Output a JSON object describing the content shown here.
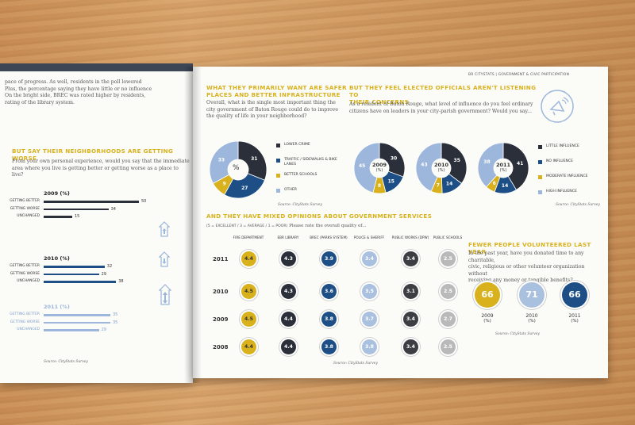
{
  "header": {
    "running_head": "BR CITYSTATS | GOVERNMENT & CIVIC PARTICIPATION"
  },
  "left": {
    "intro": [
      " pace of progress. As well, residents in the poll lowered",
      "Plus, the percentage saying they have little or no influence",
      "On the bright side, BREC was rated higher by residents,",
      "rating of the library system."
    ],
    "heading": "BUT SAY THEIR NEIGHBORHOODS ARE GETTING WORSE",
    "question": [
      "From your own personal experience, would you say that the immediate",
      "area where you live is getting better or getting worse as a place to live?"
    ],
    "source": "Source: CityStats Survey",
    "groups": [
      {
        "title": "2009 (%)",
        "color": "#2b2f3a",
        "rows": [
          {
            "label": "GETTING BETTER",
            "value": 50
          },
          {
            "label": "GETTING WORSE",
            "value": 34
          },
          {
            "label": "UNCHANGED",
            "value": 15
          }
        ]
      },
      {
        "title": "2010 (%)",
        "color": "#1d4f86",
        "rows": [
          {
            "label": "GETTING BETTER",
            "value": 32
          },
          {
            "label": "GETTING WORSE",
            "value": 29
          },
          {
            "label": "UNCHANGED",
            "value": 38
          }
        ]
      },
      {
        "title": "2011 (%)",
        "color": "#9cb7db",
        "rows": [
          {
            "label": "GETTING BETTER",
            "value": 35
          },
          {
            "label": "GETTING WORSE",
            "value": 35
          },
          {
            "label": "UNCHANGED",
            "value": 29
          }
        ]
      }
    ]
  },
  "safer": {
    "heading": [
      "WHAT THEY PRIMARILY WANT ARE SAFER",
      "PLACES AND BETTER INFRASTRUCTURE"
    ],
    "question": [
      "Overall, what is the single most important thing the",
      "city government of Baton Rouge could do to improve",
      "the quality of life in your neighborhood?"
    ],
    "source": "Source: CityStats Survey",
    "center": "%",
    "legend": [
      {
        "label": "LOWER CRIME",
        "color": "#2b2f3a"
      },
      {
        "label": "TRAFFIC / SIDEWALKS & BIKE LANES",
        "color": "#1d4f86"
      },
      {
        "label": "BETTER SCHOOLS",
        "color": "#d8b11c"
      },
      {
        "label": "OTHER",
        "color": "#9cb7db"
      }
    ]
  },
  "influence": {
    "heading": [
      "BUT THEY FEEL ELECTED OFFICIALS AREN'T LISTENING TO",
      "THEIR CONCERNS"
    ],
    "question": [
      "As a resident of Baton Rouge, what level of influence do you feel ordinary",
      "citizens have on leaders in your city-parish government?  Would you say..."
    ],
    "source": "Source: CityStats Survey",
    "legend": [
      {
        "label": "LITTLE INFLUENCE",
        "color": "#2b2f3a"
      },
      {
        "label": "NO INFLUENCE",
        "color": "#1d4f86"
      },
      {
        "label": "MODERATE INFLUENCE",
        "color": "#d8b11c"
      },
      {
        "label": "HIGH INFLUENCE",
        "color": "#9cb7db"
      }
    ],
    "icon": "megaphone-icon"
  },
  "services": {
    "heading": "AND THEY HAVE MIXED OPINIONS ABOUT GOVERNMENT SERVICES",
    "scale_prefix": "(5 = EXCELLENT / 3 = AVERAGE / 1 = POOR)",
    "scale_question": " Please rate the overall quality of...",
    "source": "Source: CityStats Survey",
    "columns": [
      "FIRE DEPARTMENT",
      "EBR LIBRARY",
      "BREC (PARKS SYSTEM)",
      "POLICE & SHERIFF",
      "PUBLIC WORKS (DPW)",
      "PUBLIC SCHOOLS"
    ],
    "col_colors": [
      "#d8b11c",
      "#2b2f3a",
      "#1d4f86",
      "#a9c0df",
      "#3c3e44",
      "#b9b9b9"
    ],
    "years": [
      "2011",
      "2010",
      "2009",
      "2008"
    ],
    "values": [
      [
        "4.4",
        "4.3",
        "3.9",
        "3.4",
        "3.4",
        "2.5"
      ],
      [
        "4.5",
        "4.3",
        "3.6",
        "3.5",
        "3.1",
        "2.5"
      ],
      [
        "4.5",
        "4.4",
        "3.8",
        "3.7",
        "3.4",
        "2.7"
      ],
      [
        "4.4",
        "4.4",
        "3.8",
        "3.8",
        "3.4",
        "2.5"
      ]
    ]
  },
  "volunteer": {
    "heading": "FEWER PEOPLE VOLUNTEERED LAST YEAR",
    "question": [
      "In the past year, have you donated time to any charitable,",
      "civic, religious or other volunteer organization without",
      "receiving any money or tangible benefits?"
    ],
    "source": "Source: CityStats Survey",
    "items": [
      {
        "value": "66",
        "year": "2009",
        "unit": "(%)",
        "color": "#d8b11c"
      },
      {
        "value": "71",
        "year": "2010",
        "unit": "(%)",
        "color": "#a9c0df"
      },
      {
        "value": "66",
        "year": "2011",
        "unit": "(%)",
        "color": "#1d4f86"
      }
    ]
  },
  "chart_data": [
    {
      "type": "bar",
      "title": "2009 (%)",
      "categories": [
        "GETTING BETTER",
        "GETTING WORSE",
        "UNCHANGED"
      ],
      "values": [
        50,
        34,
        15
      ]
    },
    {
      "type": "bar",
      "title": "2010 (%)",
      "categories": [
        "GETTING BETTER",
        "GETTING WORSE",
        "UNCHANGED"
      ],
      "values": [
        32,
        29,
        38
      ]
    },
    {
      "type": "bar",
      "title": "2011 (%)",
      "categories": [
        "GETTING BETTER",
        "GETTING WORSE",
        "UNCHANGED"
      ],
      "values": [
        35,
        35,
        29
      ]
    },
    {
      "type": "pie",
      "title": "%",
      "categories": [
        "LOWER CRIME",
        "TRAFFIC / SIDEWALKS & BIKE LANES",
        "BETTER SCHOOLS",
        "OTHER"
      ],
      "values": [
        31,
        27,
        9,
        33
      ],
      "colors": [
        "#2b2f3a",
        "#1d4f86",
        "#d8b11c",
        "#9cb7db"
      ]
    },
    {
      "type": "pie",
      "title": "2009",
      "unit": "(%)",
      "categories": [
        "LITTLE INFLUENCE",
        "NO INFLUENCE",
        "MODERATE INFLUENCE",
        "HIGH INFLUENCE"
      ],
      "values": [
        30,
        15,
        8,
        45
      ],
      "colors": [
        "#2b2f3a",
        "#1d4f86",
        "#d8b11c",
        "#9cb7db"
      ]
    },
    {
      "type": "pie",
      "title": "2010",
      "unit": "(%)",
      "categories": [
        "LITTLE INFLUENCE",
        "NO INFLUENCE",
        "MODERATE INFLUENCE",
        "HIGH INFLUENCE"
      ],
      "values": [
        35,
        14,
        7,
        43
      ],
      "colors": [
        "#2b2f3a",
        "#1d4f86",
        "#d8b11c",
        "#9cb7db"
      ]
    },
    {
      "type": "pie",
      "title": "2011",
      "unit": "(%)",
      "categories": [
        "LITTLE INFLUENCE",
        "NO INFLUENCE",
        "MODERATE INFLUENCE",
        "HIGH INFLUENCE"
      ],
      "values": [
        41,
        14,
        6,
        38
      ],
      "colors": [
        "#2b2f3a",
        "#1d4f86",
        "#d8b11c",
        "#9cb7db"
      ]
    }
  ]
}
